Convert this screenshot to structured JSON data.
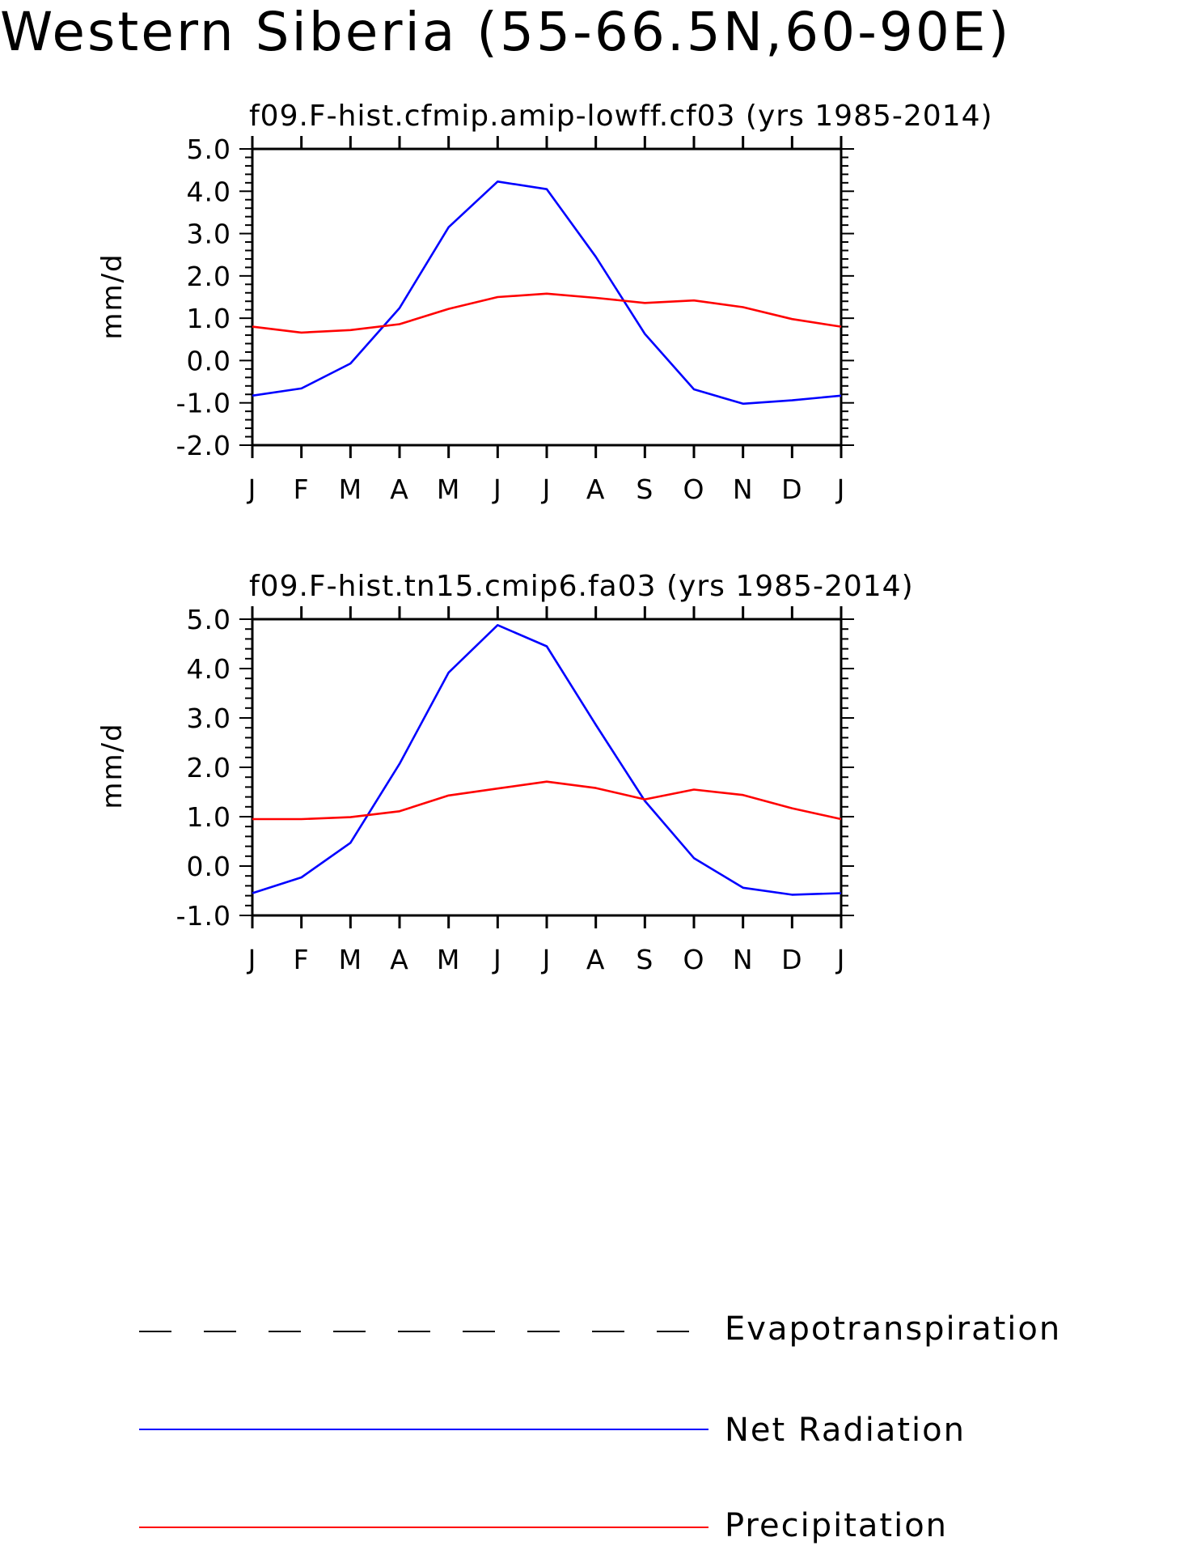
{
  "title": "Western Siberia (55-66.5N,60-90E)",
  "colors": {
    "Net Radiation": "#0000ff",
    "Precipitation": "#ff0000",
    "Evapotranspiration": "#000000",
    "axes": "#000000"
  },
  "legend": {
    "placement": "bottom",
    "items": [
      {
        "label": "Evapotranspiration",
        "style": "dashed",
        "color": "#000000"
      },
      {
        "label": "Net Radiation",
        "style": "solid",
        "color": "#0000ff"
      },
      {
        "label": "Precipitation",
        "style": "solid",
        "color": "#ff0000"
      }
    ]
  },
  "chart_data": [
    {
      "type": "line",
      "title": "f09.F-hist.cfmip.amip-lowff.cf03 (yrs 1985-2014)",
      "xlabel": "",
      "ylabel": "mm/d",
      "categories": [
        "J",
        "F",
        "M",
        "A",
        "M",
        "J",
        "J",
        "A",
        "S",
        "O",
        "N",
        "D",
        "J"
      ],
      "ylim": [
        -2.0,
        5.0
      ],
      "yticks": [
        "5.0",
        "4.0",
        "3.0",
        "2.0",
        "1.0",
        "0.0",
        "-1.0",
        "-2.0"
      ],
      "grid": false,
      "series": [
        {
          "name": "Net Radiation",
          "values": [
            -0.83,
            -0.66,
            -0.07,
            1.24,
            3.15,
            4.23,
            4.05,
            2.45,
            0.63,
            -0.68,
            -1.02,
            -0.94,
            -0.83
          ]
        },
        {
          "name": "Precipitation",
          "values": [
            0.8,
            0.66,
            0.72,
            0.86,
            1.22,
            1.5,
            1.58,
            1.48,
            1.36,
            1.42,
            1.26,
            0.98,
            0.8
          ]
        }
      ]
    },
    {
      "type": "line",
      "title": "f09.F-hist.tn15.cmip6.fa03 (yrs 1985-2014)",
      "xlabel": "",
      "ylabel": "mm/d",
      "categories": [
        "J",
        "F",
        "M",
        "A",
        "M",
        "J",
        "J",
        "A",
        "S",
        "O",
        "N",
        "D",
        "J"
      ],
      "ylim": [
        -1.0,
        5.0
      ],
      "yticks": [
        "5.0",
        "4.0",
        "3.0",
        "2.0",
        "1.0",
        "0.0",
        "-1.0"
      ],
      "grid": false,
      "series": [
        {
          "name": "Net Radiation",
          "values": [
            -0.55,
            -0.23,
            0.47,
            2.07,
            3.92,
            4.88,
            4.45,
            2.86,
            1.32,
            0.16,
            -0.44,
            -0.58,
            -0.55
          ]
        },
        {
          "name": "Precipitation",
          "values": [
            0.95,
            0.95,
            0.99,
            1.11,
            1.43,
            1.57,
            1.71,
            1.58,
            1.35,
            1.55,
            1.44,
            1.17,
            0.95
          ]
        }
      ]
    }
  ]
}
